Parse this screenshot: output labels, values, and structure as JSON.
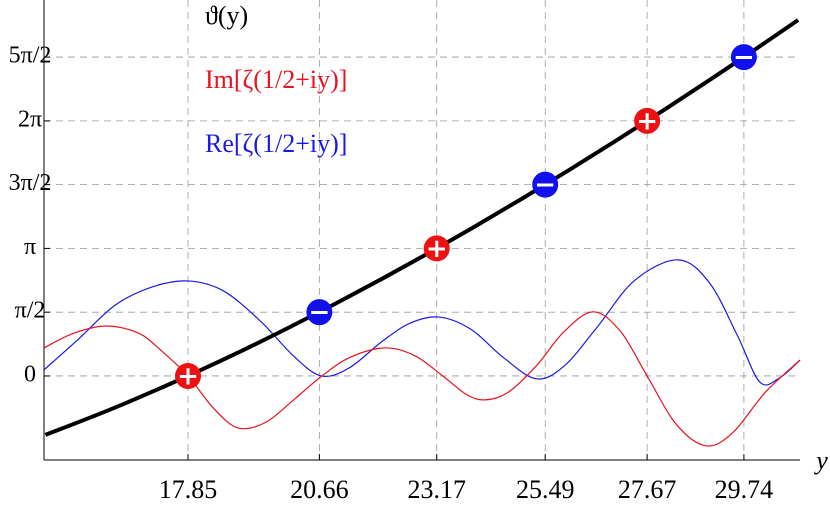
{
  "chart_data": {
    "type": "line",
    "x_label": "y",
    "xlim": [
      14.77,
      30.94
    ],
    "ylim": [
      -2.07,
      9.26
    ],
    "xticks": [
      17.85,
      20.66,
      23.17,
      25.49,
      27.67,
      29.74
    ],
    "yticks": [
      0,
      {
        "value": 1.5708,
        "label": "π/2"
      },
      {
        "value": 3.1416,
        "label": "π"
      },
      {
        "value": 4.7124,
        "label": "3π/2"
      },
      {
        "value": 6.2832,
        "label": "2π"
      },
      {
        "value": 7.854,
        "label": "5π/2"
      }
    ],
    "grid": true,
    "series": [
      {
        "name": "ϑ(y)",
        "color": "#000000",
        "width": 4,
        "x": [
          14.8,
          16,
          17,
          18,
          19,
          20,
          21,
          22,
          23,
          24,
          25,
          26,
          27,
          28,
          29,
          30,
          30.9
        ],
        "values": [
          -1.451,
          -0.914,
          -0.431,
          0.081,
          0.62,
          1.187,
          1.778,
          2.393,
          3.03,
          3.69,
          4.371,
          5.071,
          5.791,
          6.528,
          7.284,
          8.058,
          8.768
        ]
      },
      {
        "name": "Im[ζ(1/2+iy)]",
        "color": "#e8131f",
        "width": 1.2,
        "x": [
          14.77,
          15.4,
          16.1,
          16.8,
          17.3,
          17.85,
          18.4,
          18.92,
          19.5,
          20.1,
          20.66,
          21.3,
          22.06,
          22.7,
          23.3,
          23.8,
          24.2,
          24.7,
          25.3,
          25.9,
          26.52,
          27.1,
          27.67,
          28.3,
          28.93,
          29.5,
          30.2,
          30.94
        ],
        "values": [
          0.69,
          1.05,
          1.23,
          1.05,
          0.6,
          0,
          -0.8,
          -1.28,
          -1.15,
          -0.6,
          -0.05,
          0.45,
          0.69,
          0.5,
          0,
          -0.45,
          -0.59,
          -0.4,
          0.25,
          1.1,
          1.58,
          1.1,
          0,
          -1.2,
          -1.72,
          -1.4,
          -0.4,
          0.39
        ]
      },
      {
        "name": "Re[ζ(1/2+iy)]",
        "color": "#1a1ae6",
        "width": 1.2,
        "x": [
          14.77,
          15.5,
          16.3,
          17.1,
          17.85,
          18.6,
          19.4,
          20.1,
          20.7,
          21.3,
          22.0,
          22.6,
          23.22,
          23.9,
          24.6,
          25.3,
          25.9,
          26.6,
          27.4,
          28.33,
          29.0,
          29.6,
          30.08,
          30.5,
          30.94
        ],
        "values": [
          0.15,
          0.9,
          1.75,
          2.2,
          2.34,
          2.1,
          1.35,
          0.5,
          0,
          0.2,
          0.85,
          1.3,
          1.45,
          1.15,
          0.45,
          -0.07,
          0.25,
          1.2,
          2.35,
          2.86,
          2.3,
          1.0,
          -0.15,
          -0.05,
          0.39
        ]
      }
    ],
    "gram_points": {
      "x": [
        17.85,
        20.66,
        23.17,
        25.49,
        27.67,
        29.74
      ],
      "values": [
        0,
        1.5708,
        3.1416,
        4.7124,
        6.2832,
        7.854
      ],
      "colors": [
        "#ee1111",
        "#1111ee",
        "#ee1111",
        "#1111ee",
        "#ee1111",
        "#1111ee"
      ],
      "labels": [
        "+",
        "−",
        "+",
        "−",
        "+",
        "−"
      ]
    }
  }
}
